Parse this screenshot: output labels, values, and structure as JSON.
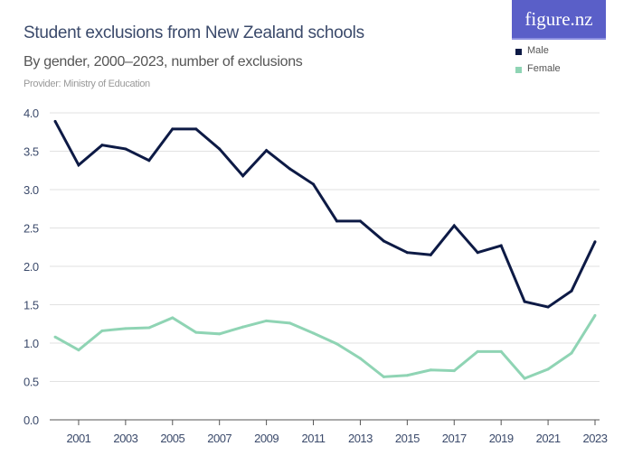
{
  "header": {
    "title": "Student exclusions from New Zealand schools",
    "subtitle": "By gender, 2000–2023, number of exclusions",
    "provider": "Provider: Ministry of Education",
    "logo": "figure.nz"
  },
  "chart_data": {
    "type": "line",
    "title": "Student exclusions from New Zealand schools",
    "subtitle": "By gender, 2000–2023, number of exclusions",
    "x": [
      2000,
      2001,
      2002,
      2003,
      2004,
      2005,
      2006,
      2007,
      2008,
      2009,
      2010,
      2011,
      2012,
      2013,
      2014,
      2015,
      2016,
      2017,
      2018,
      2019,
      2020,
      2021,
      2022,
      2023
    ],
    "x_tick_labels": [
      "2001",
      "2003",
      "2005",
      "2007",
      "2009",
      "2011",
      "2013",
      "2015",
      "2017",
      "2019",
      "2021",
      "2023"
    ],
    "y_tick_labels": [
      "0.0",
      "0.5",
      "1.0",
      "1.5",
      "2.0",
      "2.5",
      "3.0",
      "3.5",
      "4.0"
    ],
    "ylim": [
      0,
      4
    ],
    "grid": true,
    "legend_position": "top-right",
    "series": [
      {
        "name": "Male",
        "color": "#0d1a45",
        "values": [
          3.89,
          3.32,
          3.58,
          3.53,
          3.38,
          3.79,
          3.79,
          3.53,
          3.18,
          3.51,
          3.27,
          3.07,
          2.59,
          2.59,
          2.33,
          2.18,
          2.15,
          2.53,
          2.18,
          2.27,
          1.54,
          1.47,
          1.68,
          2.32
        ]
      },
      {
        "name": "Female",
        "color": "#8fd4b4",
        "values": [
          1.08,
          0.91,
          1.16,
          1.19,
          1.2,
          1.33,
          1.14,
          1.12,
          1.21,
          1.29,
          1.26,
          1.13,
          0.99,
          0.8,
          0.56,
          0.58,
          0.65,
          0.64,
          0.89,
          0.89,
          0.54,
          0.66,
          0.87,
          1.36
        ]
      }
    ]
  }
}
